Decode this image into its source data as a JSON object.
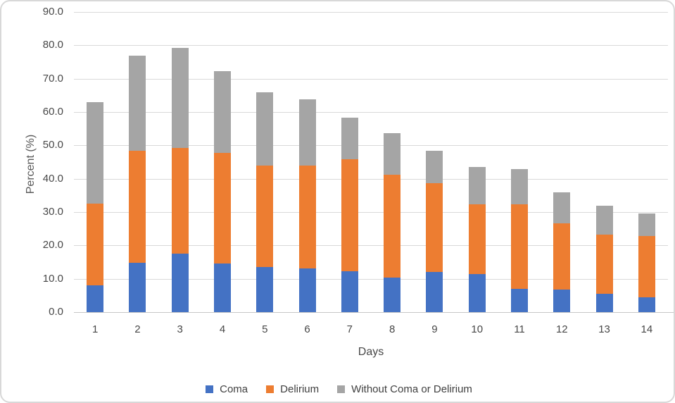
{
  "chart_data": {
    "type": "bar",
    "stacked": true,
    "title": "",
    "xlabel": "Days",
    "ylabel": "Percent (%)",
    "categories": [
      "1",
      "2",
      "3",
      "4",
      "5",
      "6",
      "7",
      "8",
      "9",
      "10",
      "11",
      "12",
      "13",
      "14"
    ],
    "series": [
      {
        "name": "Coma",
        "color": "#4472C4",
        "values": [
          8.0,
          14.8,
          17.6,
          14.5,
          13.5,
          13.0,
          12.3,
          10.3,
          12.1,
          11.4,
          7.0,
          6.8,
          5.4,
          4.5
        ]
      },
      {
        "name": "Delirium",
        "color": "#ED7D31",
        "values": [
          24.5,
          33.5,
          31.6,
          33.2,
          30.4,
          30.9,
          33.6,
          30.9,
          26.5,
          21.0,
          25.4,
          19.9,
          17.9,
          18.4
        ]
      },
      {
        "name": "Without Coma or Delirium",
        "color": "#A5A5A5",
        "values": [
          30.5,
          28.7,
          30.0,
          24.5,
          22.1,
          20.0,
          12.4,
          12.4,
          9.7,
          11.1,
          10.4,
          9.2,
          8.5,
          6.7
        ]
      }
    ],
    "stack_totals": [
      63.0,
      77.0,
      79.2,
      72.2,
      66.0,
      63.9,
      58.3,
      53.6,
      48.3,
      43.5,
      42.8,
      35.9,
      31.8,
      29.6
    ],
    "ylim": [
      0,
      90
    ],
    "ytick_step": 10,
    "ytick_labels": [
      "0.0",
      "10.0",
      "20.0",
      "30.0",
      "40.0",
      "50.0",
      "60.0",
      "70.0",
      "80.0",
      "90.0"
    ],
    "grid": true,
    "legend_position": "bottom"
  },
  "legend": {
    "items": [
      {
        "label": "Coma",
        "color": "#4472C4"
      },
      {
        "label": "Delirium",
        "color": "#ED7D31"
      },
      {
        "label": "Without Coma or Delirium",
        "color": "#A5A5A5"
      }
    ]
  }
}
